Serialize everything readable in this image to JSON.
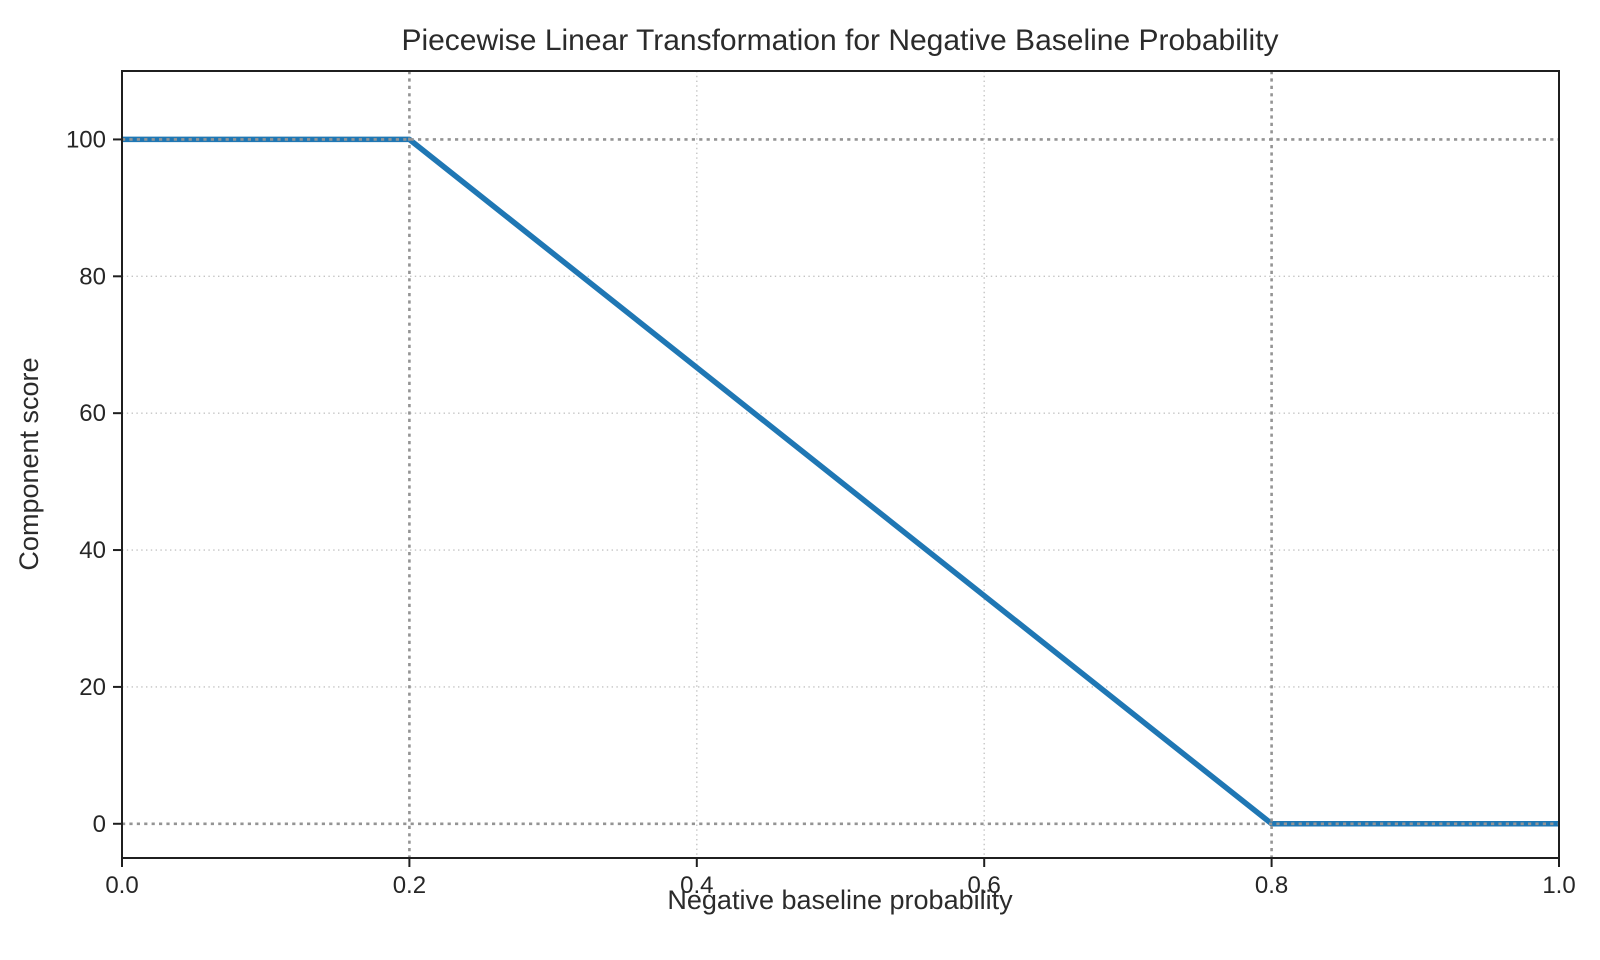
{
  "title": "Piecewise Linear Transformation for Negative Baseline Probability",
  "chart_data": {
    "type": "line",
    "title": "Piecewise Linear Transformation for Negative Baseline Probability",
    "xlabel": "Negative baseline probability",
    "ylabel": "Component score",
    "xlim": [
      0.0,
      1.0
    ],
    "ylim": [
      -5,
      110
    ],
    "x_ticks": [
      0.0,
      0.2,
      0.4,
      0.6,
      0.8,
      1.0
    ],
    "x_tick_labels": [
      "0.0",
      "0.2",
      "0.4",
      "0.6",
      "0.8",
      "1.0"
    ],
    "y_ticks": [
      0,
      20,
      40,
      60,
      80,
      100
    ],
    "y_tick_labels": [
      "0",
      "20",
      "40",
      "60",
      "80",
      "100"
    ],
    "series": [
      {
        "name": "component score",
        "color": "#1f77b4",
        "points": [
          [
            0.0,
            100
          ],
          [
            0.2,
            100
          ],
          [
            0.8,
            0
          ],
          [
            1.0,
            0
          ]
        ]
      }
    ],
    "reference_lines": {
      "vertical_x": [
        0.2,
        0.8
      ],
      "horizontal_y": [
        0,
        100
      ]
    },
    "grid": {
      "vertical_x": [
        0.4,
        0.6
      ],
      "horizontal_y": [
        20,
        40,
        60,
        80
      ]
    },
    "legend": "none",
    "colors": {
      "line": "#1f77b4",
      "grid_minor": "#c4c4c4",
      "reference": "#949494",
      "spine": "#1f1f1f",
      "text": "#262626",
      "background": "#ffffff"
    }
  }
}
